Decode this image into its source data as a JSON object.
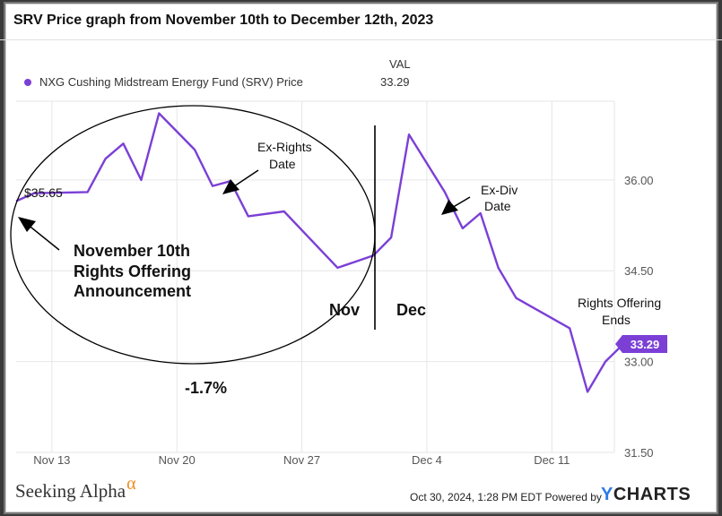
{
  "chart_data": {
    "type": "line",
    "title": "SRV Price graph from November 10th to December 12th, 2023",
    "legend": {
      "header": "VAL",
      "series_name": "NXG Cushing Midstream Energy Fund (SRV) Price",
      "value": "33.29"
    },
    "x_labels": [
      "Nov 13",
      "Nov 20",
      "Nov 27",
      "Dec 4",
      "Dec 11"
    ],
    "x_label_index": [
      2,
      9,
      16,
      23,
      30
    ],
    "y_ticks": [
      "31.50",
      "33.00",
      "34.50",
      "36.00"
    ],
    "y_tick_values": [
      31.5,
      33.0,
      34.5,
      36.0
    ],
    "ylim": [
      31.5,
      37.3
    ],
    "xlim": [
      0,
      33.5
    ],
    "series": [
      {
        "name": "SRV",
        "color": "#7b3fd6",
        "points": [
          [
            0,
            35.65
          ],
          [
            1,
            35.78
          ],
          [
            4,
            35.8
          ],
          [
            5,
            36.35
          ],
          [
            6,
            36.6
          ],
          [
            7,
            36.0
          ],
          [
            8,
            37.1
          ],
          [
            10,
            36.5
          ],
          [
            11,
            35.9
          ],
          [
            12,
            35.98
          ],
          [
            13,
            35.4
          ],
          [
            15,
            35.48
          ],
          [
            18,
            34.55
          ],
          [
            19,
            34.65
          ],
          [
            20,
            34.75
          ],
          [
            21,
            35.05
          ],
          [
            22,
            36.75
          ],
          [
            24,
            35.8
          ],
          [
            25,
            35.2
          ],
          [
            26,
            35.45
          ],
          [
            27,
            34.55
          ],
          [
            28,
            34.05
          ],
          [
            31,
            33.55
          ],
          [
            32,
            32.5
          ],
          [
            33,
            33.0
          ],
          [
            34,
            33.29
          ]
        ],
        "last_value_badge": "33.29"
      }
    ],
    "annotations": {
      "start_price": "$35.65",
      "november_note_line1": "November 10th",
      "november_note_line2": "Rights Offering",
      "november_note_line3": "Announcement",
      "ex_rights_line1": "Ex-Rights",
      "ex_rights_line2": "Date",
      "ex_div_line1": "Ex-Div",
      "ex_div_line2": "Date",
      "rights_ends_line1": "Rights Offering",
      "rights_ends_line2": "Ends",
      "nov": "Nov",
      "dec": "Dec",
      "pct_change": "-1.7%"
    }
  },
  "footer": {
    "logo_text": "Seeking Alpha",
    "logo_symbol": "α",
    "timestamp": "Oct 30, 2024, 1:28 PM EDT  Powered by",
    "brand_y": "Y",
    "brand_rest": "CHARTS"
  }
}
